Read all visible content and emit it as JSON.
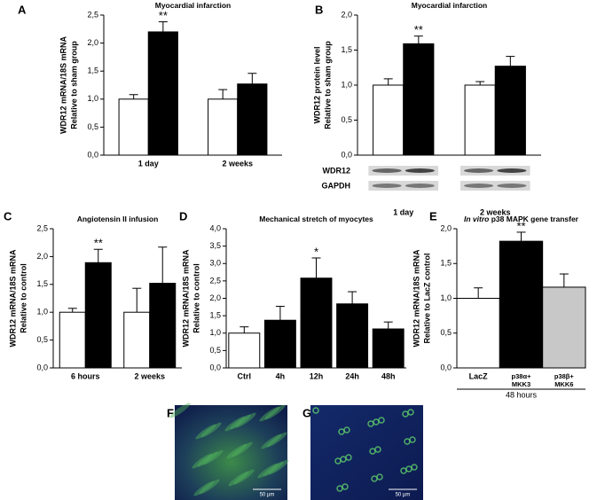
{
  "chart_data": [
    {
      "type": "bar",
      "panel": "A",
      "title": "Myocardial infarction",
      "ylabel": [
        "WDR12 mRNA/18S mRNA",
        "Relative to sham group"
      ],
      "categories": [
        [
          "1 day"
        ],
        [
          "2 weeks"
        ]
      ],
      "series": [
        {
          "colors": [
            "#ffffff",
            "#ffffff"
          ],
          "values": [
            1.0,
            1.0
          ],
          "errors": [
            0.08,
            0.17
          ],
          "annotations": [
            null,
            null
          ]
        },
        {
          "colors": [
            "#000000",
            "#000000"
          ],
          "values": [
            2.2,
            1.27
          ],
          "errors": [
            0.18,
            0.19
          ],
          "annotations": [
            "**",
            null
          ]
        }
      ],
      "ylim": [
        0,
        2.5
      ],
      "yticks": [
        {
          "value": 0,
          "label": "0,0"
        },
        {
          "value": 0.5,
          "label": "0,5"
        },
        {
          "value": 1,
          "label": "1,0"
        },
        {
          "value": 1.5,
          "label": "1,5"
        },
        {
          "value": 2,
          "label": "2,0"
        },
        {
          "value": 2.5,
          "label": "2,5"
        }
      ]
    },
    {
      "type": "bar",
      "panel": "B",
      "title": "Myocardial infarction",
      "ylabel": [
        "WDR12 protein level",
        "Relative to sham group"
      ],
      "categories": [
        [
          "1 day"
        ],
        [
          "2 weeks"
        ]
      ],
      "blot_labels": [
        "WDR12",
        "GAPDH"
      ],
      "series": [
        {
          "colors": [
            "#ffffff",
            "#ffffff"
          ],
          "values": [
            1.0,
            1.0
          ],
          "errors": [
            0.09,
            0.05
          ],
          "annotations": [
            null,
            null
          ]
        },
        {
          "colors": [
            "#000000",
            "#000000"
          ],
          "values": [
            1.59,
            1.27
          ],
          "errors": [
            0.11,
            0.14
          ],
          "annotations": [
            "**",
            null
          ]
        }
      ],
      "ylim": [
        0,
        2.0
      ],
      "yticks": [
        {
          "value": 0,
          "label": "0,0"
        },
        {
          "value": 0.5,
          "label": "0,5"
        },
        {
          "value": 1,
          "label": "1,0"
        },
        {
          "value": 1.5,
          "label": "1,5"
        },
        {
          "value": 2,
          "label": "2,0"
        }
      ]
    },
    {
      "type": "bar",
      "panel": "C",
      "title": "Angiotensin II infusion",
      "ylabel": [
        "WDR12 mRNA/18S mRNA",
        "Relative to control"
      ],
      "categories": [
        [
          "6 hours"
        ],
        [
          "2 weeks"
        ]
      ],
      "series": [
        {
          "colors": [
            "#ffffff",
            "#ffffff"
          ],
          "values": [
            1.0,
            1.0
          ],
          "errors": [
            0.07,
            0.43
          ],
          "annotations": [
            null,
            null
          ]
        },
        {
          "colors": [
            "#000000",
            "#000000"
          ],
          "values": [
            1.89,
            1.52
          ],
          "errors": [
            0.24,
            0.65
          ],
          "annotations": [
            "**",
            null
          ]
        }
      ],
      "ylim": [
        0,
        2.5
      ],
      "yticks": [
        {
          "value": 0,
          "label": "0,0"
        },
        {
          "value": 0.5,
          "label": "0,5"
        },
        {
          "value": 1,
          "label": "1,0"
        },
        {
          "value": 1.5,
          "label": "1,5"
        },
        {
          "value": 2,
          "label": "2,0"
        },
        {
          "value": 2.5,
          "label": "2,5"
        }
      ]
    },
    {
      "type": "bar",
      "panel": "D",
      "title": "Mechanical stretch of myocytes",
      "ylabel": [
        "WDR12 mRNA/18S mRNA",
        "Relative to control"
      ],
      "categories": [
        [
          "Ctrl"
        ],
        [
          "4h"
        ],
        [
          "12h"
        ],
        [
          "24h"
        ],
        [
          "48h"
        ]
      ],
      "series": [
        {
          "colors": [
            "#ffffff",
            "#000000",
            "#000000",
            "#000000",
            "#000000"
          ],
          "values": [
            1.0,
            1.37,
            2.58,
            1.84,
            1.12
          ],
          "errors": [
            0.18,
            0.4,
            0.58,
            0.35,
            0.2
          ],
          "annotations": [
            null,
            null,
            "*",
            null,
            null
          ]
        }
      ],
      "ylim": [
        0,
        4.0
      ],
      "yticks": [
        {
          "value": 0,
          "label": "0,0"
        },
        {
          "value": 0.5,
          "label": "0,5"
        },
        {
          "value": 1,
          "label": "1,0"
        },
        {
          "value": 1.5,
          "label": "1,5"
        },
        {
          "value": 2,
          "label": "2,0"
        },
        {
          "value": 2.5,
          "label": "2,5"
        },
        {
          "value": 3,
          "label": "3,0"
        },
        {
          "value": 3.5,
          "label": "3,5"
        },
        {
          "value": 4,
          "label": "4,0"
        }
      ]
    },
    {
      "type": "bar",
      "panel": "E",
      "title_italic": "In vitro",
      "title": "p38 MAPK gene transfer",
      "ylabel": [
        "WDR12 mRNA/18S mRNA",
        "Relative to LacZ control"
      ],
      "categories": [
        [
          "LacZ"
        ],
        [
          "p38α+",
          "MKK3"
        ],
        [
          "p38β+",
          "MKK6"
        ]
      ],
      "group_label": "48 hours",
      "series": [
        {
          "colors": [
            "#ffffff",
            "#000000",
            "#c8c8c8"
          ],
          "values": [
            1.0,
            1.82,
            1.16
          ],
          "errors": [
            0.15,
            0.13,
            0.19
          ],
          "annotations": [
            null,
            "**",
            null
          ]
        }
      ],
      "ylim": [
        0,
        2.0
      ],
      "yticks": [
        {
          "value": 0,
          "label": "0,0"
        },
        {
          "value": 0.5,
          "label": "0,5"
        },
        {
          "value": 1,
          "label": "1,0"
        },
        {
          "value": 1.5,
          "label": "1,5"
        },
        {
          "value": 2,
          "label": "2,0"
        }
      ]
    }
  ],
  "images": [
    {
      "panel": "F",
      "scale_bar": "50 µm"
    },
    {
      "panel": "G",
      "scale_bar": "50 µm"
    }
  ]
}
